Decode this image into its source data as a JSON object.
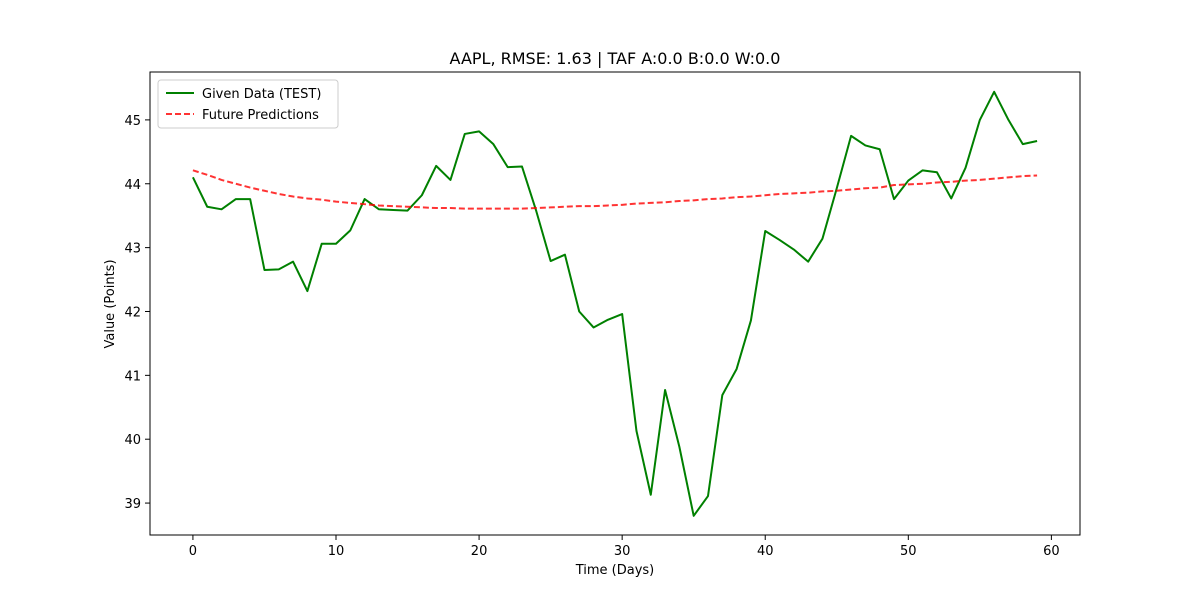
{
  "chart_data": {
    "type": "line",
    "title": "AAPL, RMSE: 1.63 | TAF A:0.0 B:0.0 W:0.0",
    "xlabel": "Time (Days)",
    "ylabel": "Value (Points)",
    "xlim": [
      -3,
      62
    ],
    "ylim": [
      38.5,
      45.75
    ],
    "xticks": [
      0,
      10,
      20,
      30,
      40,
      50,
      60
    ],
    "yticks": [
      39,
      40,
      41,
      42,
      43,
      44,
      45
    ],
    "grid": false,
    "legend_position": "upper-left",
    "series": [
      {
        "name": "Given Data (TEST)",
        "color": "#008000",
        "style": "solid",
        "x": [
          0,
          1,
          2,
          3,
          4,
          5,
          6,
          7,
          8,
          9,
          10,
          11,
          12,
          13,
          14,
          15,
          16,
          17,
          18,
          19,
          20,
          21,
          22,
          23,
          24,
          25,
          26,
          27,
          28,
          29,
          30,
          31,
          32,
          33,
          34,
          35,
          36,
          37,
          38,
          39,
          40,
          41,
          42,
          43,
          44,
          45,
          46,
          47,
          48,
          49,
          50,
          51,
          52,
          53,
          54,
          55,
          56,
          57,
          58,
          59
        ],
        "values": [
          44.1,
          43.64,
          43.6,
          43.76,
          43.76,
          42.65,
          42.66,
          42.78,
          42.32,
          43.06,
          43.06,
          43.27,
          43.76,
          43.6,
          43.59,
          43.58,
          43.82,
          44.28,
          44.06,
          44.78,
          44.82,
          44.62,
          44.26,
          44.27,
          43.57,
          42.79,
          42.89,
          42.0,
          41.75,
          41.87,
          41.96,
          40.13,
          39.13,
          40.77,
          39.88,
          38.8,
          39.11,
          40.69,
          41.1,
          41.86,
          43.26,
          43.12,
          42.97,
          42.78,
          43.14,
          43.93,
          44.75,
          44.6,
          44.54,
          43.76,
          44.05,
          44.21,
          44.18,
          43.77,
          44.25,
          45.0,
          45.44,
          45.0,
          44.62,
          44.67
        ]
      },
      {
        "name": "Future Predictions",
        "color": "#ff0000",
        "style": "dashed",
        "x": [
          0,
          1,
          2,
          3,
          4,
          5,
          6,
          7,
          8,
          9,
          10,
          11,
          12,
          13,
          14,
          15,
          16,
          17,
          18,
          19,
          20,
          21,
          22,
          23,
          24,
          25,
          26,
          27,
          28,
          29,
          30,
          31,
          32,
          33,
          34,
          35,
          36,
          37,
          38,
          39,
          40,
          41,
          42,
          43,
          44,
          45,
          46,
          47,
          48,
          49,
          50,
          51,
          52,
          53,
          54,
          55,
          56,
          57,
          58,
          59
        ],
        "values": [
          44.21,
          44.14,
          44.06,
          44.0,
          43.94,
          43.89,
          43.84,
          43.8,
          43.77,
          43.75,
          43.72,
          43.7,
          43.68,
          43.66,
          43.65,
          43.64,
          43.63,
          43.62,
          43.62,
          43.61,
          43.61,
          43.61,
          43.61,
          43.61,
          43.62,
          43.63,
          43.64,
          43.65,
          43.65,
          43.66,
          43.67,
          43.69,
          43.7,
          43.71,
          43.73,
          43.74,
          43.76,
          43.77,
          43.79,
          43.8,
          43.82,
          43.84,
          43.85,
          43.86,
          43.88,
          43.89,
          43.91,
          43.93,
          43.94,
          43.98,
          43.99,
          44.0,
          44.02,
          44.03,
          44.05,
          44.06,
          44.08,
          44.1,
          44.12,
          44.13
        ]
      }
    ]
  }
}
